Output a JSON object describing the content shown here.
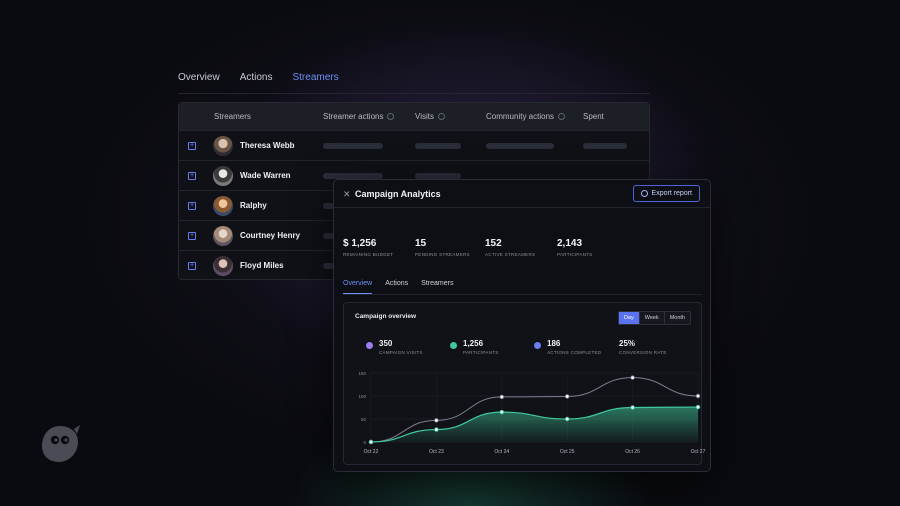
{
  "top_tabs": [
    {
      "label": "Overview",
      "active": false
    },
    {
      "label": "Actions",
      "active": false
    },
    {
      "label": "Streamers",
      "active": true
    }
  ],
  "table": {
    "columns": [
      "Streamers",
      "Streamer actions",
      "Visits",
      "Community actions",
      "Spent"
    ],
    "rows": [
      {
        "name": "Theresa Webb"
      },
      {
        "name": "Wade Warren"
      },
      {
        "name": "Ralphy"
      },
      {
        "name": "Courtney Henry"
      },
      {
        "name": "Floyd Miles"
      }
    ]
  },
  "panel": {
    "title": "Campaign Analytics",
    "export_label": "Export report",
    "stats": [
      {
        "value": "$ 1,256",
        "label": "REMAINING BUDGET"
      },
      {
        "value": "15",
        "label": "PENDING STREAMERS"
      },
      {
        "value": "152",
        "label": "ACTIVE STREAMERS"
      },
      {
        "value": "2,143",
        "label": "PARTICIPANTS"
      }
    ],
    "tabs": [
      {
        "label": "Overview",
        "active": true
      },
      {
        "label": "Actions",
        "active": false
      },
      {
        "label": "Streamers",
        "active": false
      }
    ],
    "chart_card": {
      "title": "Campaign overview",
      "ranges": [
        {
          "label": "Day",
          "active": true
        },
        {
          "label": "Week",
          "active": false
        },
        {
          "label": "Month",
          "active": false
        }
      ],
      "kpis": [
        {
          "value": "350",
          "label": "CAMPAIGN VISITS",
          "color": "#9c7cf0"
        },
        {
          "value": "1,256",
          "label": "PARTICIPANTS",
          "color": "#3ec99a"
        },
        {
          "value": "186",
          "label": "ACTIONS COMPLETED",
          "color": "#6d7ef5"
        },
        {
          "value": "25%",
          "label": "CONVERSION RATE",
          "color": ""
        }
      ]
    }
  },
  "chart_data": {
    "type": "area",
    "x": [
      "Oct 22",
      "Oct 23",
      "Oct 24",
      "Oct 25",
      "Oct 26",
      "Oct 27"
    ],
    "y_ticks": [
      "0",
      "50",
      "100",
      "150"
    ],
    "ylim": [
      0,
      150
    ],
    "grid": true,
    "series": [
      {
        "values": [
          0,
          47,
          98,
          99,
          140,
          100
        ],
        "color": "#7c8090",
        "style": "line"
      },
      {
        "values": [
          0,
          27,
          65,
          50,
          75,
          76
        ],
        "color": "#3ec99a",
        "style": "area"
      }
    ]
  },
  "colors": {
    "accent": "#6f8ff7",
    "green": "#3ec99a",
    "background": "#0a0b10"
  },
  "logo_icon": "owl-logo-icon"
}
